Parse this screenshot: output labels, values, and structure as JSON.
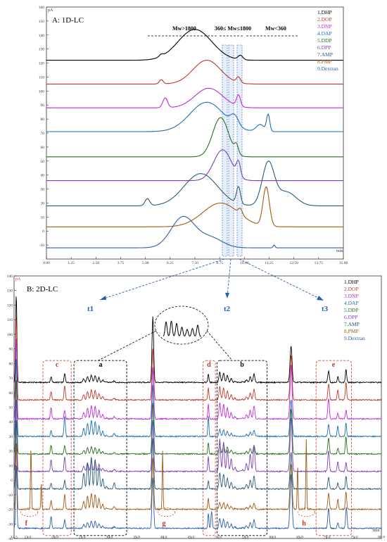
{
  "panel_a": {
    "title": "A: 1D-LC",
    "unit_label": "pA",
    "x_unit_label": "min",
    "range_labels": [
      "Mw>1800",
      "360≤ Mw≤1800",
      "Mw<360"
    ]
  },
  "panel_b": {
    "title": "B: 2D-LC",
    "unit_label": "pA",
    "x_unit_label": "min",
    "arrow_labels": [
      "t1",
      "t2",
      "t3"
    ],
    "region_labels": [
      "a",
      "b",
      "c",
      "d",
      "e",
      "f",
      "g",
      "h"
    ]
  },
  "legend_items": [
    "1.DHP",
    "2.DOP",
    "3.DNP",
    "4.DAP",
    "5.DDP",
    "6.DPP",
    "7.AMP",
    "8.PMP",
    "9.Dextran"
  ],
  "series_colors": [
    "#000000",
    "#c0392b",
    "#c02bd8",
    "#1f6fb0",
    "#2a6e1f",
    "#7a3fb8",
    "#2b5a78",
    "#a05a12",
    "#2e5fa8"
  ],
  "chart_data": [
    {
      "type": "line",
      "title": "A: 1D-LC",
      "ylabel": "pA",
      "xlabel": "min",
      "xlim": [
        0.0,
        15.0
      ],
      "ylim": [
        -20,
        160
      ],
      "x_ticks": [
        "0.00",
        "1.25",
        "2.50",
        "3.75",
        "5.00",
        "6.25",
        "7.50",
        "8.75",
        "10.00",
        "11.25",
        "12.50",
        "13.75",
        "15.00"
      ],
      "y_ticks": [
        "-10",
        "0",
        "10",
        "20",
        "30",
        "40",
        "50",
        "60",
        "70",
        "80",
        "90",
        "100",
        "110",
        "120",
        "130",
        "140",
        "150",
        "160"
      ],
      "series": [
        {
          "name": "1.DHP",
          "baseline": 122,
          "peaks": [
            [
              7.5,
              22,
              0.85
            ],
            [
              5.8,
              1.5,
              0.1
            ],
            [
              9.8,
              3,
              0.12
            ]
          ]
        },
        {
          "name": "2.DOP",
          "baseline": 105,
          "peaks": [
            [
              8.1,
              17,
              0.7
            ],
            [
              5.8,
              3,
              0.1
            ],
            [
              9.7,
              4,
              0.1
            ]
          ]
        },
        {
          "name": "3.DNP",
          "baseline": 88,
          "peaks": [
            [
              8.2,
              14,
              0.7
            ],
            [
              6.0,
              7,
              0.12
            ],
            [
              9.7,
              8,
              0.1
            ]
          ]
        },
        {
          "name": "4.DAP",
          "baseline": 71,
          "peaks": [
            [
              8.1,
              21,
              0.85
            ],
            [
              9.5,
              7,
              0.2
            ],
            [
              10.8,
              5,
              0.2
            ],
            [
              11.2,
              12,
              0.08
            ]
          ]
        },
        {
          "name": "5.DDP",
          "baseline": 53,
          "peaks": [
            [
              8.8,
              28,
              0.4
            ],
            [
              9.6,
              6,
              0.1
            ]
          ]
        },
        {
          "name": "6.DPP",
          "baseline": 36,
          "peaks": [
            [
              8.9,
              22,
              0.45
            ],
            [
              9.7,
              10,
              0.1
            ]
          ]
        },
        {
          "name": "7.AMP",
          "baseline": 18,
          "peaks": [
            [
              7.8,
              23,
              0.85
            ],
            [
              5.1,
              5,
              0.12
            ],
            [
              9.7,
              12,
              0.1
            ],
            [
              11.2,
              30,
              0.3
            ],
            [
              12.1,
              10,
              0.5
            ]
          ]
        },
        {
          "name": "8.PMP",
          "baseline": 3,
          "peaks": [
            [
              8.8,
              17,
              0.9
            ],
            [
              9.8,
              4,
              0.1
            ],
            [
              11.1,
              28,
              0.16
            ]
          ]
        },
        {
          "name": "9.Dextran",
          "baseline": -12,
          "peaks": [
            [
              6.9,
              22,
              0.6
            ],
            [
              8.3,
              7,
              0.6
            ],
            [
              11.5,
              2,
              0.05
            ]
          ]
        }
      ]
    },
    {
      "type": "line",
      "title": "B: 2D-LC",
      "ylabel": "pA",
      "xlabel": "min",
      "xlim": [
        12.5,
        80.0
      ],
      "ylim": [
        -40,
        140
      ],
      "x_ticks": [
        "12.5",
        "15.0",
        "20.0",
        "25.0",
        "30.0",
        "35.0",
        "40.0",
        "45.0",
        "50.0",
        "55.0",
        "60.0",
        "65.0",
        "70.0",
        "75.0",
        "80.0"
      ],
      "y_ticks": [
        "-40",
        "-30",
        "-20",
        "-10",
        "0",
        "10",
        "20",
        "30",
        "40",
        "50",
        "60",
        "70",
        "80",
        "90",
        "100",
        "110",
        "120",
        "130",
        "140"
      ],
      "series_baselines": [
        67,
        55,
        42,
        30,
        18,
        6,
        -6,
        -20,
        -33
      ]
    }
  ]
}
